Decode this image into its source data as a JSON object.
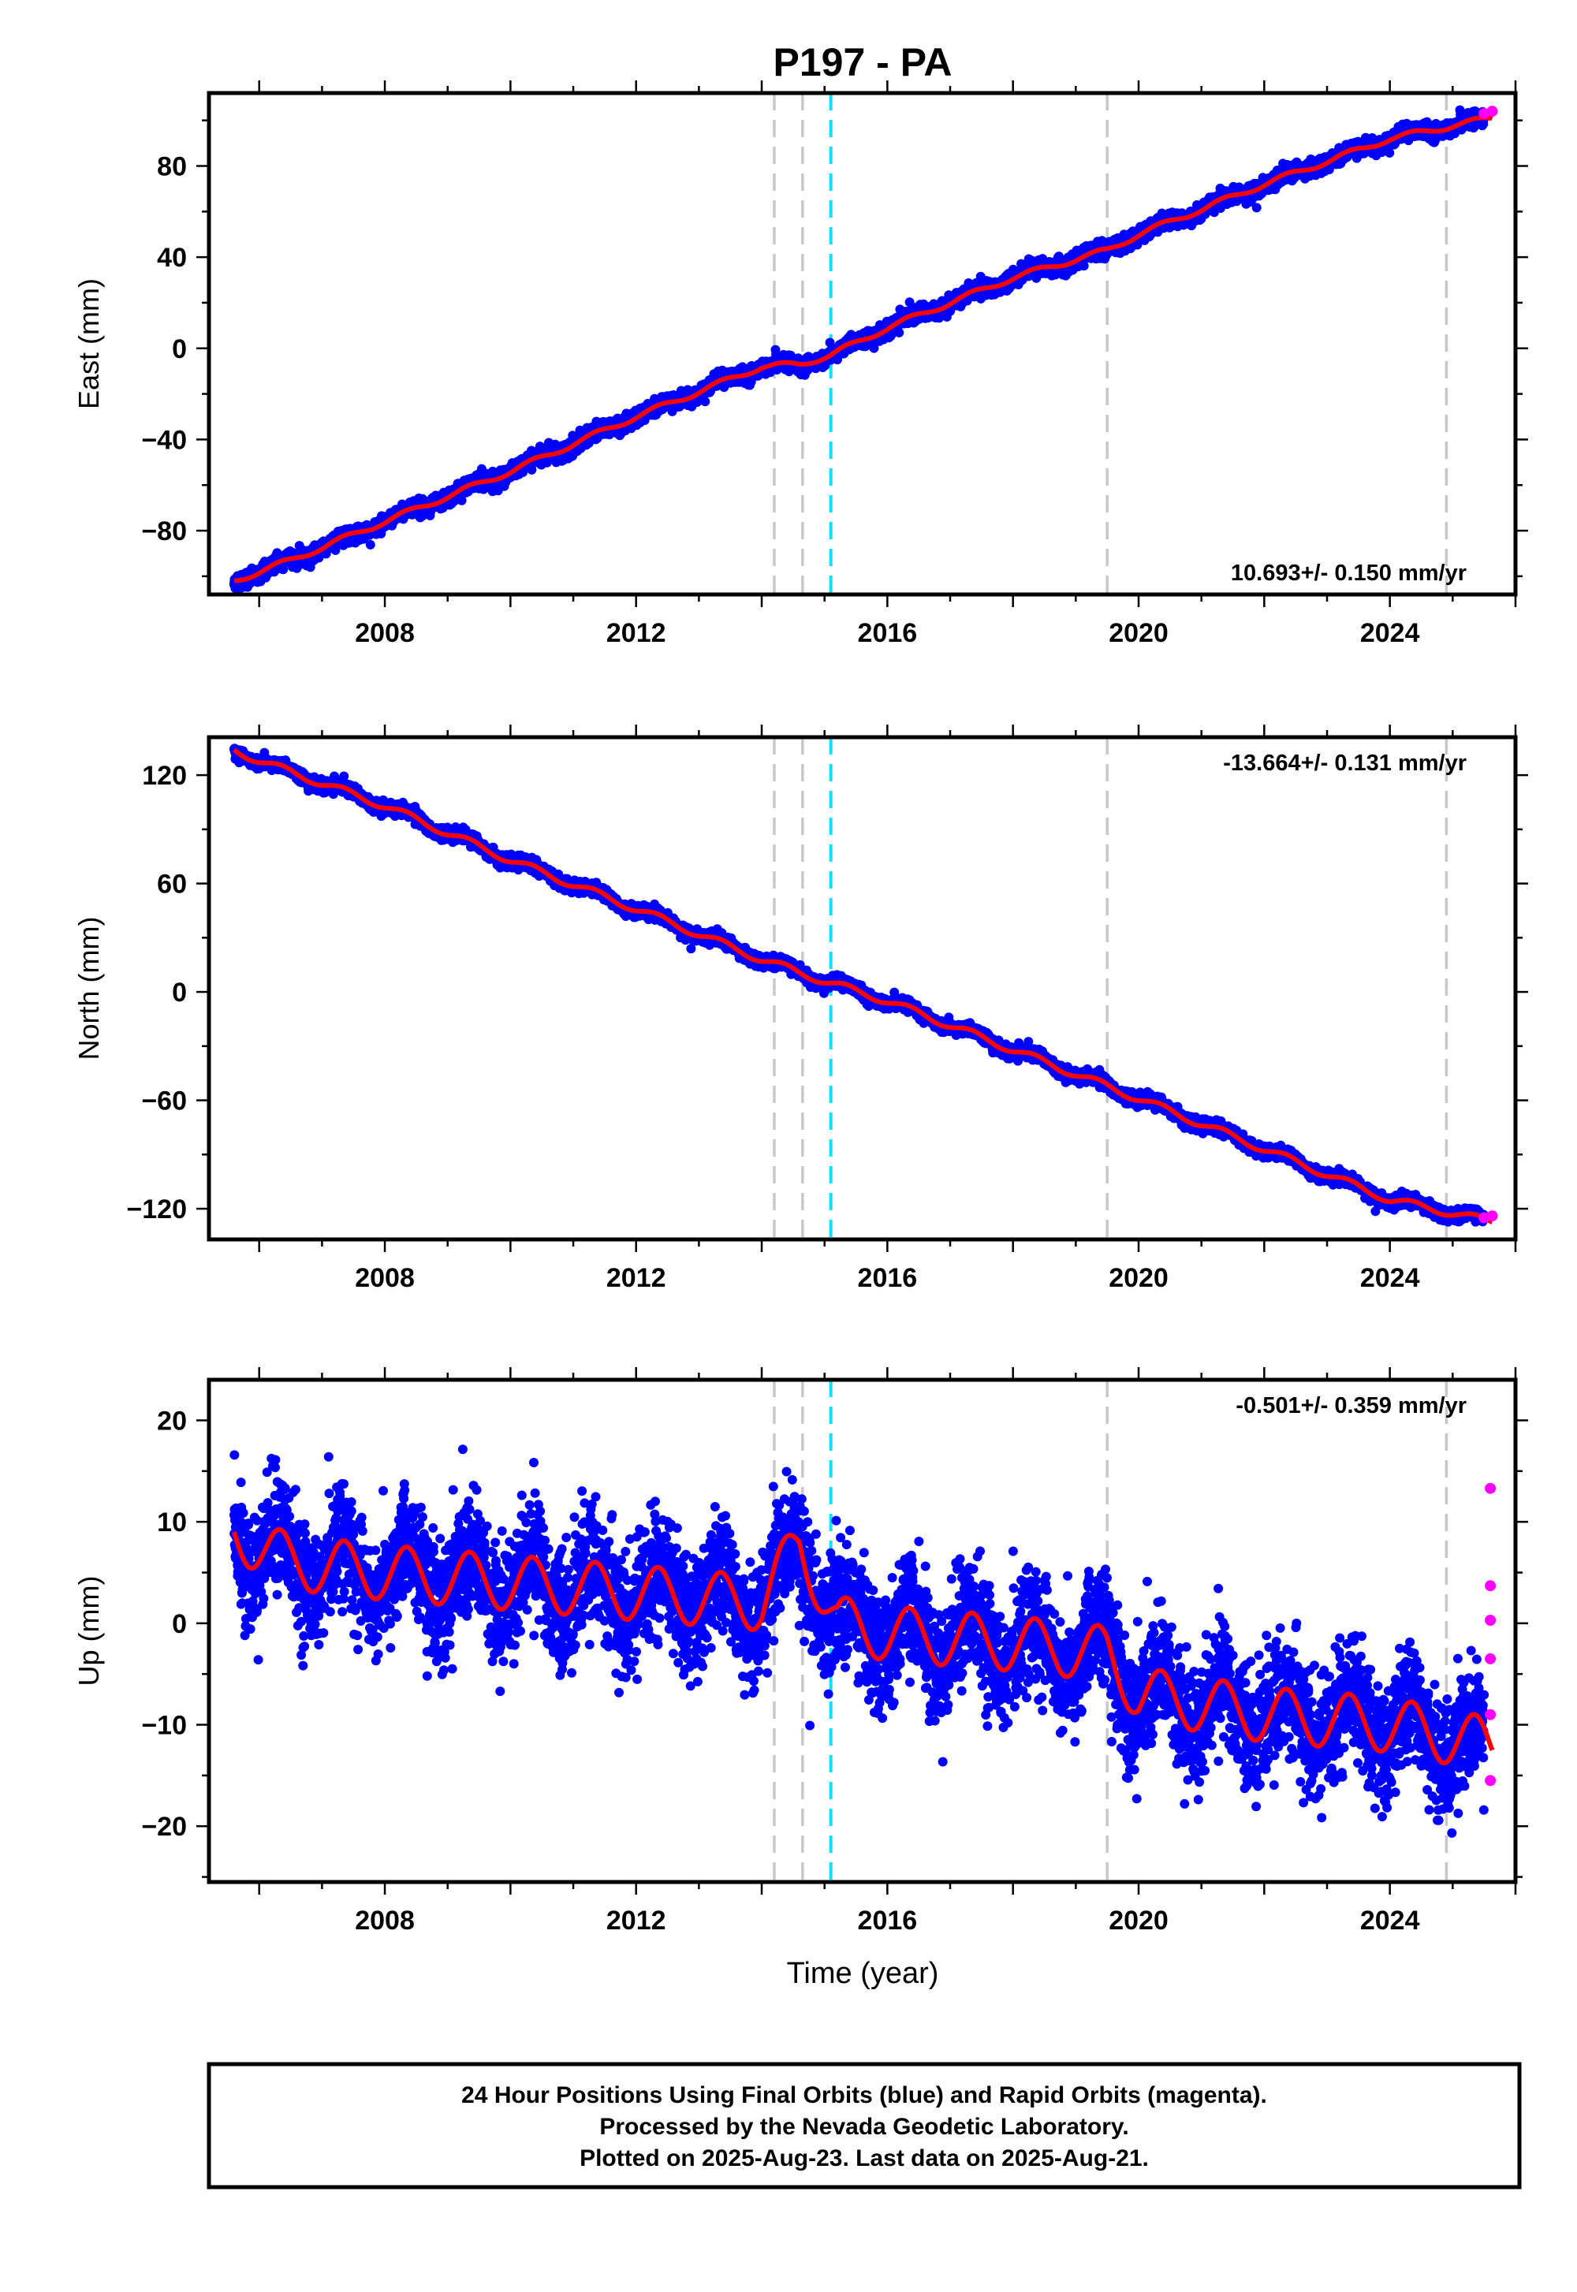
{
  "title": "P197 - PA",
  "x_axis_title": "Time (year)",
  "footer": {
    "lines": [
      "24 Hour Positions Using Final Orbits (blue) and Rapid Orbits (magenta).",
      "Processed by the Nevada Geodetic Laboratory.",
      "Plotted on 2025-Aug-23. Last data on 2025-Aug-21."
    ]
  },
  "colors": {
    "final_orbits": "#0000ff",
    "rapid_orbits": "#ff00ff",
    "model_fit": "#ff0000",
    "equipment_change_line": "#c8c8c8",
    "event_line": "#00e5ff"
  },
  "chart_data": [
    {
      "type": "scatter",
      "component": "east",
      "ylabel": "East (mm)",
      "rate_text": "10.693+/- 0.150 mm/yr",
      "rate_position": "bottom-right",
      "xlim": [
        2005.2,
        2026.0
      ],
      "ylim": [
        -108,
        112
      ],
      "xticks": [
        2008,
        2012,
        2016,
        2020,
        2024
      ],
      "yticks": [
        -80,
        -40,
        0,
        40,
        80
      ],
      "time_range": [
        2005.6,
        2025.63
      ],
      "rapid_start": 2025.5,
      "equipment_change_lines": [
        2014.2,
        2014.65,
        2019.5,
        2024.9
      ],
      "event_lines": [
        2015.1
      ],
      "series": [
        {
          "name": "Final Orbits (blue)",
          "x": [
            2005.6,
            2006.5,
            2008.0,
            2010.0,
            2012.0,
            2014.0,
            2014.6,
            2015.1,
            2016.0,
            2018.0,
            2019.5,
            2020.0,
            2022.0,
            2024.0,
            2025.6
          ],
          "y": [
            -102,
            -93,
            -76,
            -54,
            -30,
            -8,
            -7,
            -3,
            9,
            31,
            43,
            50,
            72,
            92,
            101
          ]
        },
        {
          "name": "Rapid Orbits (magenta)",
          "x": [
            2025.5,
            2025.63
          ],
          "y": [
            103,
            104
          ]
        }
      ]
    },
    {
      "type": "scatter",
      "component": "north",
      "ylabel": "North (mm)",
      "rate_text": "-13.664+/- 0.131 mm/yr",
      "rate_position": "top-right",
      "xlim": [
        2005.2,
        2026.0
      ],
      "ylim": [
        -137,
        141
      ],
      "xticks": [
        2008,
        2012,
        2016,
        2020,
        2024
      ],
      "yticks": [
        -120,
        -60,
        0,
        60,
        120
      ],
      "time_range": [
        2005.6,
        2025.63
      ],
      "rapid_start": 2025.5,
      "equipment_change_lines": [
        2014.2,
        2014.65,
        2019.5,
        2024.9
      ],
      "event_lines": [
        2015.1
      ],
      "series": [
        {
          "name": "Final Orbits (blue)",
          "x": [
            2005.6,
            2006.0,
            2008.0,
            2010.0,
            2012.0,
            2014.0,
            2015.0,
            2016.0,
            2018.0,
            2020.0,
            2022.0,
            2024.0,
            2025.6
          ],
          "y": [
            134,
            128,
            103,
            73,
            46,
            18,
            6,
            -5,
            -32,
            -59,
            -87,
            -115,
            -127
          ]
        },
        {
          "name": "Rapid Orbits (magenta)",
          "x": [
            2025.5,
            2025.63
          ],
          "y": [
            -125,
            -124
          ]
        }
      ]
    },
    {
      "type": "scatter",
      "component": "up",
      "ylabel": "Up (mm)",
      "rate_text": "-0.501+/- 0.359 mm/yr",
      "rate_position": "top-right",
      "xlim": [
        2005.2,
        2026.0
      ],
      "ylim": [
        -25.5,
        24
      ],
      "xticks": [
        2008,
        2012,
        2016,
        2020,
        2024
      ],
      "yticks": [
        -20,
        -10,
        0,
        10,
        20
      ],
      "time_range": [
        2005.6,
        2025.63
      ],
      "rapid_start": 2025.5,
      "equipment_change_lines": [
        2014.2,
        2014.65,
        2019.5,
        2024.9
      ],
      "event_lines": [
        2015.1
      ],
      "series": [
        {
          "name": "Final Orbits (blue)",
          "x": [
            2005.6,
            2006.5,
            2008.0,
            2010.0,
            2012.0,
            2014.0,
            2014.6,
            2015.2,
            2016.0,
            2018.0,
            2019.5,
            2020.0,
            2022.0,
            2024.0,
            2025.6
          ],
          "y": [
            9,
            6,
            5,
            4,
            3,
            2,
            8,
            0,
            -1,
            -2,
            -3,
            -7,
            -9,
            -10,
            -12
          ]
        },
        {
          "name": "Rapid Orbits (magenta)",
          "x": [
            2025.6,
            2025.6,
            2025.6,
            2025.6,
            2025.6,
            2025.6
          ],
          "y": [
            13.3,
            3.7,
            0.3,
            -3.5,
            -9.0,
            -15.5
          ]
        }
      ]
    }
  ]
}
